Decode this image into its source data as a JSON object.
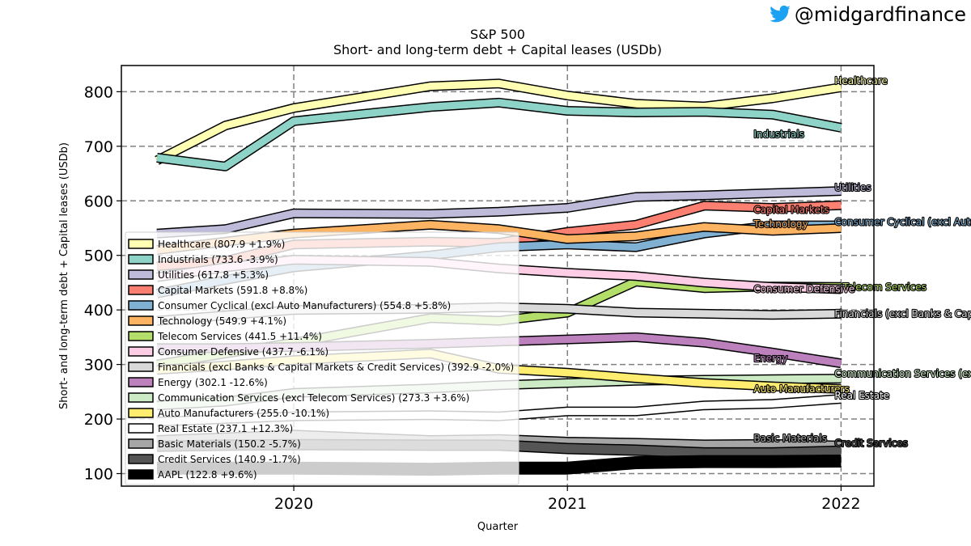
{
  "watermark": {
    "handle": "@midgardfinance",
    "icon": "bird-icon",
    "icon_color": "#1da1f2"
  },
  "chart_data": {
    "type": "line",
    "title": "S&P 500",
    "subtitle": "Short- and long-term debt + Capital leases (USDb)",
    "xlabel": "Quarter",
    "ylabel": "Short- and long-term debt + Capital leases (USDb)",
    "xlim": [
      2019.37,
      2022.12
    ],
    "ylim": [
      77,
      848
    ],
    "xticks": [
      2020,
      2021,
      2022
    ],
    "yticks": [
      100,
      200,
      300,
      400,
      500,
      600,
      700,
      800
    ],
    "grid": true,
    "legend_position": "lower-left",
    "x": [
      2019.5,
      2019.75,
      2020.0,
      2020.5,
      2020.75,
      2021.0,
      2021.25,
      2021.5,
      2021.75,
      2022.0
    ],
    "series": [
      {
        "name": "Healthcare",
        "legend": "Healthcare (807.9 +1.9%)",
        "color": "#ffffb3",
        "width": 9,
        "end_label_dy": -8,
        "values": [
          674,
          738,
          770,
          810,
          815,
          793,
          778,
          773,
          788,
          808
        ]
      },
      {
        "name": "Industrials",
        "legend": "Industrials (733.6 -3.9%)",
        "color": "#8dd3c7",
        "width": 9,
        "end_label_dx": -100,
        "end_label_dy": 8,
        "values": [
          679,
          663,
          746,
          772,
          780,
          765,
          762,
          763,
          758,
          734
        ]
      },
      {
        "name": "Utilities",
        "legend": "Utilities (617.8 +5.3%)",
        "color": "#bebada",
        "width": 9,
        "end_label_dy": -4,
        "values": [
          540,
          548,
          577,
          576,
          580,
          587,
          607,
          610,
          614,
          618
        ]
      },
      {
        "name": "Capital Markets",
        "legend": "Capital Markets (591.8 +8.8%)",
        "color": "#fb8072",
        "width": 9,
        "end_label_dx": -100,
        "end_label_dy": 6,
        "values": [
          480,
          490,
          520,
          525,
          523,
          543,
          556,
          591,
          587,
          592
        ]
      },
      {
        "name": "Consumer Cyclical (excl Auto Manufacturers)",
        "legend": "Consumer Cyclical (excl Auto Manufacturers) (554.8 +5.8%)",
        "color": "#80b1d3",
        "width": 9,
        "end_label_dy": -4,
        "values": [
          430,
          455,
          478,
          500,
          515,
          520,
          515,
          540,
          555,
          555
        ]
      },
      {
        "name": "Technology",
        "legend": "Technology (549.9 +4.1%)",
        "color": "#fdb462",
        "width": 9,
        "end_label_dx": -100,
        "end_label_dy": -5,
        "values": [
          510,
          525,
          540,
          556,
          548,
          530,
          535,
          552,
          545,
          550
        ]
      },
      {
        "name": "Telecom Services",
        "legend": "Telecom Services (441.5 +11.4%)",
        "color": "#b3de69",
        "width": 9,
        "end_label_dx": 10,
        "end_label_dy": 0,
        "values": [
          300,
          320,
          340,
          385,
          380,
          395,
          452,
          440,
          443,
          442
        ]
      },
      {
        "name": "Consumer Defensive",
        "legend": "Consumer Defensive (437.7 -6.1%)",
        "color": "#fccde5",
        "width": 9,
        "end_label_dx": -100,
        "end_label_dy": 0,
        "values": [
          460,
          478,
          492,
          488,
          476,
          468,
          462,
          450,
          442,
          438
        ]
      },
      {
        "name": "Financials (excl Banks & Capital Markets & Credit Services)",
        "legend": "Financials (excl Banks & Capital Markets & Credit Services) (392.9 -2.0%)",
        "color": "#d9d9d9",
        "width": 9,
        "end_label_dy": 0,
        "values": [
          380,
          390,
          400,
          402,
          405,
          402,
          395,
          393,
          391,
          393
        ]
      },
      {
        "name": "Energy",
        "legend": "Energy (302.1 -12.6%)",
        "color": "#bc80bd",
        "width": 9,
        "end_label_dx": -100,
        "end_label_dy": -6,
        "values": [
          330,
          330,
          332,
          338,
          342,
          346,
          350,
          340,
          322,
          302
        ]
      },
      {
        "name": "Communication Services (excl Telecom Services)",
        "legend": "Communication Services (excl Telecom Services) (273.3 +3.6%)",
        "color": "#ccebc5",
        "width": 9,
        "end_label_dy": -6,
        "values": [
          225,
          232,
          248,
          256,
          262,
          266,
          270,
          272,
          273,
          274
        ]
      },
      {
        "name": "Auto Manufacturers",
        "legend": "Auto Manufacturers (255.0 -10.1%)",
        "color": "#ffed6f",
        "width": 9,
        "end_label_dx": -100,
        "end_label_dy": 0,
        "values": [
          290,
          298,
          308,
          320,
          292,
          285,
          275,
          266,
          260,
          255
        ]
      },
      {
        "name": "Real Estate",
        "legend": "Real Estate (237.1 +12.3%)",
        "color": "#ffffff",
        "width": 9,
        "end_label_dy": -4,
        "values": [
          195,
          200,
          205,
          207,
          205,
          214,
          214,
          225,
          228,
          237
        ]
      },
      {
        "name": "Basic Materials",
        "legend": "Basic Materials (150.2 -5.7%)",
        "color": "#a6a6a6",
        "width": 11,
        "end_label_dx": -100,
        "end_label_dy": -10,
        "values": [
          160,
          165,
          170,
          160,
          162,
          157,
          155,
          152,
          153,
          150
        ]
      },
      {
        "name": "Credit Services",
        "legend": "Credit Services (140.9 -1.7%)",
        "color": "#555555",
        "width": 11,
        "end_label_dy": -10,
        "values": [
          150,
          152,
          153,
          152,
          152,
          146,
          143,
          138,
          138,
          141
        ]
      },
      {
        "name": "AAPL",
        "legend": "AAPL (122.8 +9.6%)",
        "color": "#000000",
        "width": 13,
        "end_label_hidden": true,
        "values": [
          110,
          110,
          110,
          108,
          110,
          110,
          120,
          122,
          122,
          123
        ]
      }
    ]
  }
}
